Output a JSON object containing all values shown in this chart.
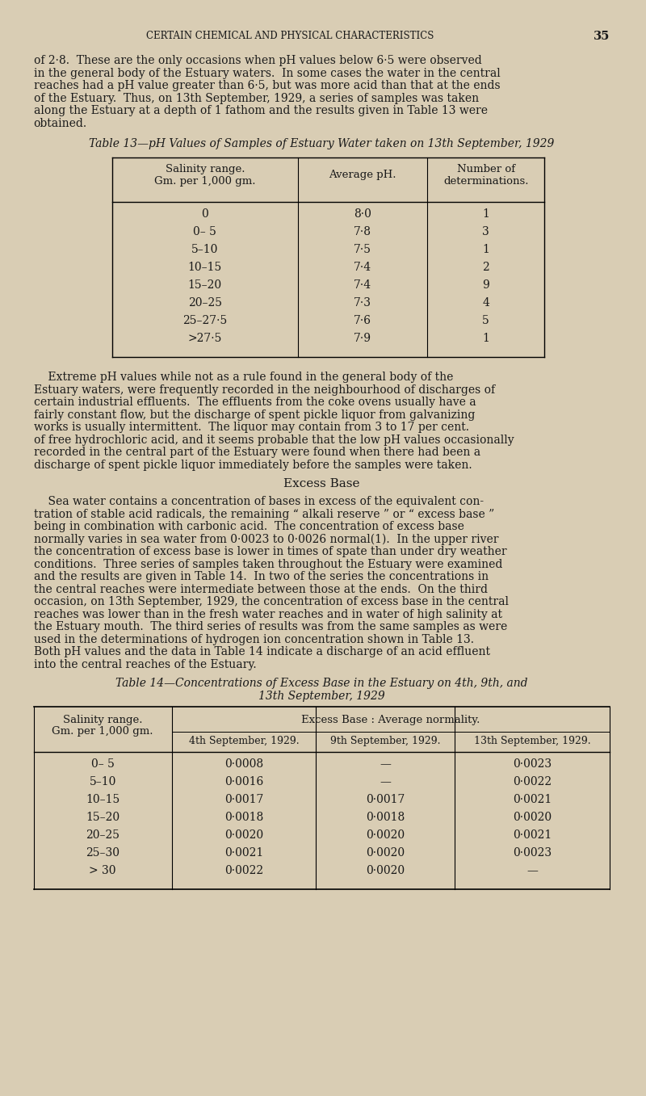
{
  "bg_color": "#d9cdb4",
  "text_color": "#1a1a1a",
  "header_text": "CERTAIN CHEMICAL AND PHYSICAL CHARACTERISTICS",
  "page_num": "35",
  "para1": "of 2·8.  These are the only occasions when pH values below 6·5 were observed in the general body of the Estuary waters.  In some cases the water in the central reaches had a pH value greater than 6·5, but was more acid than that at the ends of the Estuary.  Thus, on 13th September, 1929, a series of samples was taken along the Estuary at a depth of 1 fathom and the results given in Table 13 were obtained.",
  "table13_title": "Table 13—pH Values of Samples of Estuary Water taken on 13th September, 1929",
  "table13_col1_header": "Salinity range.\n\nGm. per 1,000 gm.",
  "table13_col2_header": "Average pH.",
  "table13_col3_header": "Number of\ndeterminations.",
  "table13_rows": [
    [
      "0",
      "8·0",
      "1"
    ],
    [
      "0– 5",
      "7·8",
      "3"
    ],
    [
      "5–10",
      "7·5",
      "1"
    ],
    [
      "10–15",
      "7·4",
      "2"
    ],
    [
      "15–20",
      "7·4",
      "9"
    ],
    [
      "20–25",
      "7·3",
      "4"
    ],
    [
      "25–27·5",
      "7·6",
      "5"
    ],
    [
      ">27·5",
      "7·9",
      "1"
    ]
  ],
  "para2": "Extreme pH values while not as a rule found in the general body of the Estuary waters, were frequently recorded in the neighbourhood of discharges of certain industrial effluents.  The effluents from the coke ovens usually have a fairly constant flow, but the discharge of spent pickle liquor from galvanizing works is usually intermittent.  The liquor may contain from 3 to 17 per cent. of free hydrochloric acid, and it seems probable that the low pH values occasionally recorded in the central part of the Estuary were found when there had been a discharge of spent pickle liquor immediately before the samples were taken.",
  "section_heading": "Excess Base",
  "para3": "Sea water contains a concentration of bases in excess of the equivalent con-\ntration of stable acid radicals, the remaining “ alkali reserve ” or “ excess base ”\nbeing in combination with carbonic acid.  The concentration of excess base\nnormally varies in sea water from 0·0023 to 0·0026 normal(1).  In the upper river\nthe concentration of excess base is lower in times of spate than under dry weather\nconditions.  Three series of samples taken throughout the Estuary were examined\nand the results are given in Table 14.  In two of the series the concentrations in\nthe central reaches were intermediate between those at the ends.  On the third\noccasion, on 13th September, 1929, the concentration of excess base in the central\nreaches was lower than in the fresh water reaches and in water of high salinity at\nthe Estuary mouth.  The third series of results was from the same samples as were\nused in the determinations of hydrogen ion concentration shown in Table 13.\nBoth pH values and the data in Table 14 indicate a discharge of an acid effluent\ninto the central reaches of the Estuary.",
  "table14_title": "Table 14—Concentrations of Excess Base in the Estuary on 4th, 9th, and\n13th September, 1929",
  "table14_col1_header": "Salinity range.\n\nGm. per 1,000 gm.",
  "table14_col2_header": "4th September, 1929.",
  "table14_col3_header": "9th September, 1929.",
  "table14_col4_header": "13th September, 1929.",
  "table14_subheader": "Excess Base : Average normality.",
  "table14_rows": [
    [
      "0– 5",
      "0·0008",
      "—",
      "0·0023"
    ],
    [
      "5–10",
      "0·0016",
      "—",
      "0·0022"
    ],
    [
      "10–15",
      "0·0017",
      "0·0017",
      "0·0021"
    ],
    [
      "15–20",
      "0·0018",
      "0·0018",
      "0·0020"
    ],
    [
      "20–25",
      "0·0020",
      "0·0020",
      "0·0021"
    ],
    [
      "25–30",
      "0·0021",
      "0·0020",
      "0·0023"
    ],
    [
      "> 30",
      "0·0022",
      "0·0020",
      "—"
    ]
  ]
}
